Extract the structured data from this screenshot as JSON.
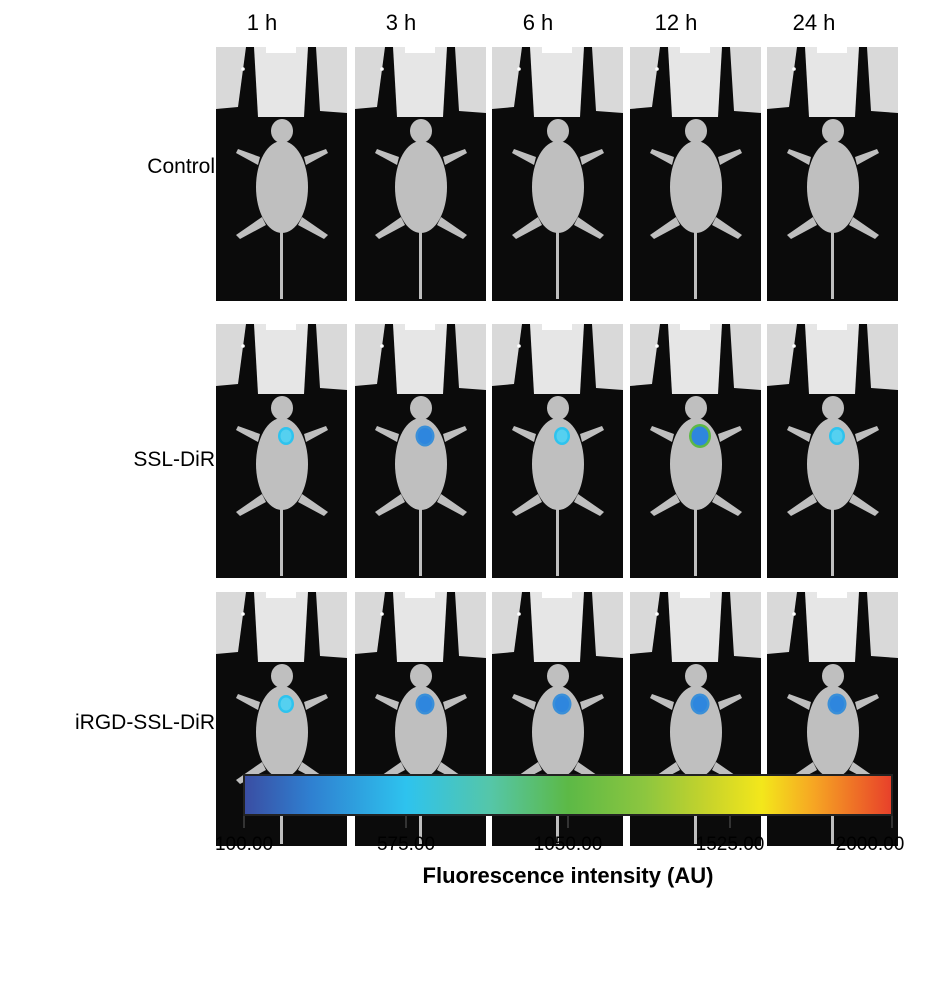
{
  "time_points": [
    "1 h",
    "3 h",
    "6 h",
    "12 h",
    "24 h"
  ],
  "groups": [
    "Control",
    "SSL-DiR",
    "iRGD-SSL-DiR"
  ],
  "signal": [
    [
      0,
      0,
      0,
      0,
      0
    ],
    [
      1,
      2,
      1,
      3,
      1
    ],
    [
      1,
      2,
      2,
      2,
      2
    ]
  ],
  "colorbar": {
    "ticks": [
      "100.00",
      "575.00",
      "1050.00",
      "1525.00",
      "2000.00"
    ],
    "title": "Fluorescence intensity (AU)",
    "colors": [
      "#3a4ea3",
      "#2ec3ee",
      "#5cb946",
      "#f3e71b",
      "#e8412a"
    ]
  }
}
